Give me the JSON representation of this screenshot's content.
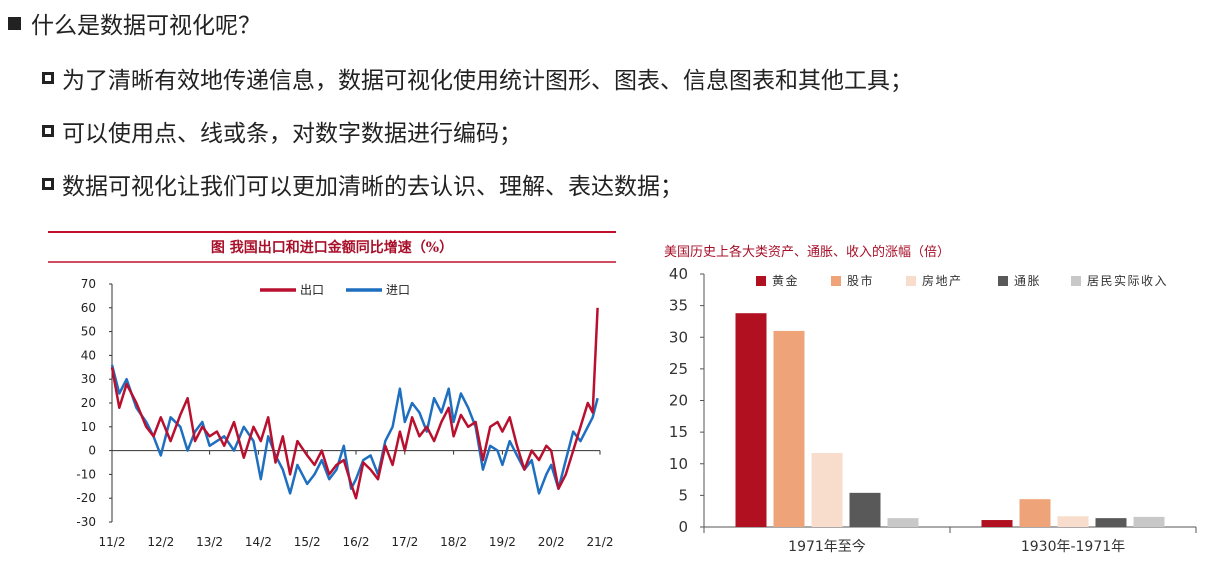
{
  "heading": "什么是数据可视化呢？",
  "bullets": [
    "为了清晰有效地传递信息，数据可视化使用统计图形、图表、信息图表和其他工具；",
    "可以使用点、线或条，对数字数据进行编码；",
    "数据可视化让我们可以更加清晰的去认识、理解、表达数据；"
  ],
  "chart_data": [
    {
      "type": "line",
      "title": "图 我国出口和进口金额同比增速（%）",
      "xlabel": "",
      "ylabel": "",
      "ylim": [
        -30,
        70
      ],
      "yticks": [
        "70",
        "60",
        "50",
        "40",
        "30",
        "20",
        "10",
        "0",
        "-10",
        "-20",
        "-30"
      ],
      "x_tick_labels": [
        "11/2",
        "12/2",
        "13/2",
        "14/2",
        "15/2",
        "16/2",
        "17/2",
        "18/2",
        "19/2",
        "20/2",
        "21/2"
      ],
      "legend_position": "top-center",
      "colors": {
        "出口": "#b8102e",
        "进口": "#1f6fc0"
      },
      "series": [
        {
          "name": "出口",
          "x": [
            0,
            0.15,
            0.3,
            0.5,
            0.7,
            0.85,
            1.0,
            1.2,
            1.4,
            1.55,
            1.7,
            1.85,
            2.0,
            2.15,
            2.3,
            2.5,
            2.7,
            2.9,
            3.05,
            3.2,
            3.35,
            3.5,
            3.65,
            3.8,
            4.0,
            4.15,
            4.3,
            4.45,
            4.6,
            4.75,
            4.9,
            5.0,
            5.15,
            5.3,
            5.45,
            5.6,
            5.75,
            5.9,
            6.0,
            6.15,
            6.3,
            6.45,
            6.6,
            6.75,
            6.9,
            7.0,
            7.15,
            7.3,
            7.45,
            7.6,
            7.75,
            7.9,
            8.0,
            8.15,
            8.3,
            8.45,
            8.6,
            8.75,
            8.9,
            9.0,
            9.15,
            9.3,
            9.45,
            9.6,
            9.75,
            9.85,
            9.95
          ],
          "values": [
            35,
            18,
            28,
            20,
            10,
            6,
            14,
            4,
            15,
            22,
            4,
            10,
            6,
            8,
            2,
            12,
            -3,
            10,
            4,
            14,
            -5,
            6,
            -10,
            4,
            -2,
            -6,
            0,
            -10,
            -6,
            -4,
            -14,
            -20,
            -5,
            -8,
            -12,
            2,
            -6,
            8,
            0,
            14,
            6,
            10,
            4,
            12,
            18,
            6,
            15,
            10,
            12,
            -4,
            10,
            12,
            8,
            14,
            2,
            -8,
            0,
            -4,
            2,
            0,
            -16,
            -10,
            0,
            10,
            20,
            16,
            60
          ]
        },
        {
          "name": "进口",
          "x": [
            0,
            0.15,
            0.3,
            0.5,
            0.7,
            0.85,
            1.0,
            1.2,
            1.4,
            1.55,
            1.7,
            1.85,
            2.0,
            2.15,
            2.3,
            2.5,
            2.7,
            2.9,
            3.05,
            3.2,
            3.35,
            3.5,
            3.65,
            3.8,
            4.0,
            4.15,
            4.3,
            4.45,
            4.6,
            4.75,
            4.9,
            5.0,
            5.15,
            5.3,
            5.45,
            5.6,
            5.75,
            5.9,
            6.0,
            6.15,
            6.3,
            6.45,
            6.6,
            6.75,
            6.9,
            7.0,
            7.15,
            7.3,
            7.45,
            7.6,
            7.75,
            7.9,
            8.0,
            8.15,
            8.3,
            8.45,
            8.6,
            8.75,
            8.9,
            9.0,
            9.15,
            9.3,
            9.45,
            9.6,
            9.75,
            9.85,
            9.95
          ],
          "values": [
            36,
            24,
            30,
            18,
            12,
            6,
            -2,
            14,
            10,
            0,
            8,
            12,
            2,
            4,
            6,
            0,
            10,
            4,
            -12,
            6,
            -2,
            -8,
            -18,
            -6,
            -14,
            -10,
            -4,
            -12,
            -8,
            2,
            -16,
            -12,
            -4,
            -2,
            -10,
            4,
            10,
            26,
            12,
            20,
            16,
            8,
            22,
            16,
            26,
            12,
            24,
            18,
            10,
            -8,
            2,
            0,
            -6,
            4,
            -2,
            -8,
            -4,
            -18,
            -10,
            -6,
            -16,
            -4,
            8,
            4,
            10,
            14,
            22
          ]
        }
      ]
    },
    {
      "type": "bar",
      "title": "美国历史上各大类资产、通胀、收入的涨幅（倍）",
      "xlabel": "",
      "ylabel": "",
      "ylim": [
        0,
        40
      ],
      "yticks": [
        "40",
        "35",
        "30",
        "25",
        "20",
        "15",
        "10",
        "5",
        "0"
      ],
      "categories": [
        "1971年至今",
        "1930年-1971年"
      ],
      "legend_position": "top",
      "series": [
        {
          "name": "黄金",
          "color": "#b01020",
          "values": [
            33.8,
            1.1
          ]
        },
        {
          "name": "股市",
          "color": "#eea478",
          "values": [
            31.0,
            4.4
          ]
        },
        {
          "name": "房地产",
          "color": "#f8ddcc",
          "values": [
            11.7,
            1.7
          ]
        },
        {
          "name": "通胀",
          "color": "#595959",
          "values": [
            5.4,
            1.4
          ]
        },
        {
          "name": "居民实际收入",
          "color": "#c8c8c8",
          "values": [
            1.4,
            1.6
          ]
        }
      ]
    }
  ]
}
